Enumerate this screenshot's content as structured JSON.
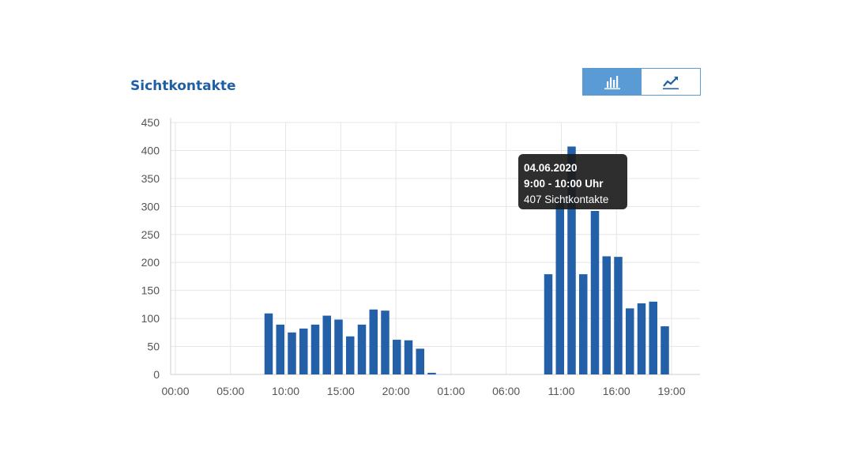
{
  "card": {
    "title": "Sichtkontakte",
    "toggle": [
      {
        "name": "bar-chart-icon",
        "active": true
      },
      {
        "name": "line-chart-icon",
        "active": false
      }
    ]
  },
  "colors": {
    "bar": "#2460a7",
    "title": "#1f5fa6",
    "toggle_active": "#5b9bd5",
    "grid": "#e6e6e6",
    "axis": "#cccccc"
  },
  "tooltip": {
    "date": "04.06.2020",
    "time": "9:00 - 10:00 Uhr",
    "value_text": "407 Sichtkontakte"
  },
  "chart_data": {
    "type": "bar",
    "title": "Sichtkontakte",
    "xlabel": "",
    "ylabel": "",
    "ylim": [
      0,
      450
    ],
    "yticks": [
      0,
      50,
      100,
      150,
      200,
      250,
      300,
      350,
      400,
      450
    ],
    "xtick_labels": [
      "00:00",
      "05:00",
      "10:00",
      "15:00",
      "20:00",
      "01:00",
      "06:00",
      "11:00",
      "16:00",
      "19:00"
    ],
    "grid": true,
    "values": [
      0,
      0,
      0,
      0,
      0,
      0,
      0,
      0,
      109,
      89,
      75,
      82,
      89,
      105,
      98,
      68,
      89,
      116,
      114,
      62,
      61,
      46,
      3,
      0,
      0,
      0,
      0,
      0,
      0,
      0,
      0,
      0,
      179,
      312,
      407,
      179,
      292,
      211,
      210,
      118,
      127,
      130,
      86
    ]
  }
}
